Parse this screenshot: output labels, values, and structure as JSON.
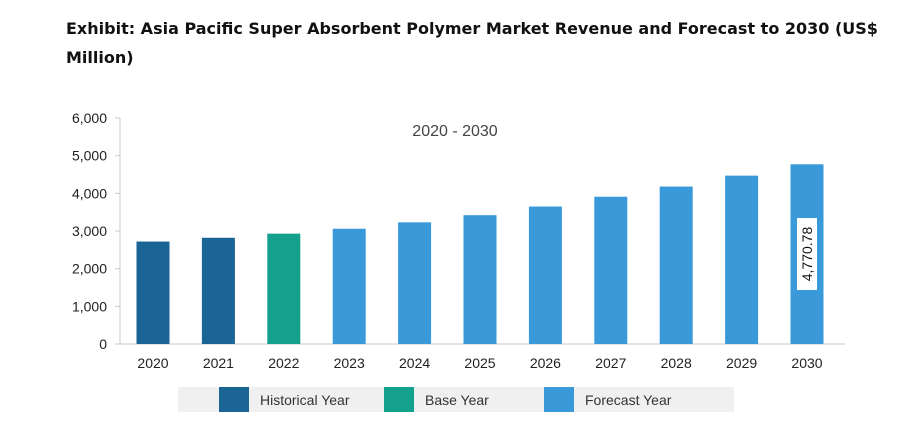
{
  "title": "Exhibit: Asia Pacific Super Absorbent Polymer Market Revenue and Forecast to 2030 (US$ Million)",
  "colors": {
    "historical": "#1a6496",
    "base": "#13a08c",
    "forecast": "#3a9ad9"
  },
  "chart_data": {
    "type": "bar",
    "annotation": "2020 - 2030",
    "categories": [
      "2020",
      "2021",
      "2022",
      "2023",
      "2024",
      "2025",
      "2026",
      "2027",
      "2028",
      "2029",
      "2030"
    ],
    "values": [
      2720,
      2820,
      2930,
      3060,
      3230,
      3420,
      3650,
      3910,
      4180,
      4470,
      4770.78
    ],
    "bar_groups": [
      "historical",
      "historical",
      "base",
      "forecast",
      "forecast",
      "forecast",
      "forecast",
      "forecast",
      "forecast",
      "forecast",
      "forecast"
    ],
    "ylim": [
      0,
      6000
    ],
    "yticks": [
      "0",
      "1,000",
      "2,000",
      "3,000",
      "4,000",
      "5,000",
      "6,000"
    ],
    "data_label": {
      "category": "2030",
      "text": "4,770.78"
    },
    "grid": false,
    "legend_position": "bottom",
    "legend": [
      {
        "label": "Historical Year",
        "group": "historical"
      },
      {
        "label": "Base Year",
        "group": "base"
      },
      {
        "label": "Forecast Year",
        "group": "forecast"
      }
    ]
  }
}
